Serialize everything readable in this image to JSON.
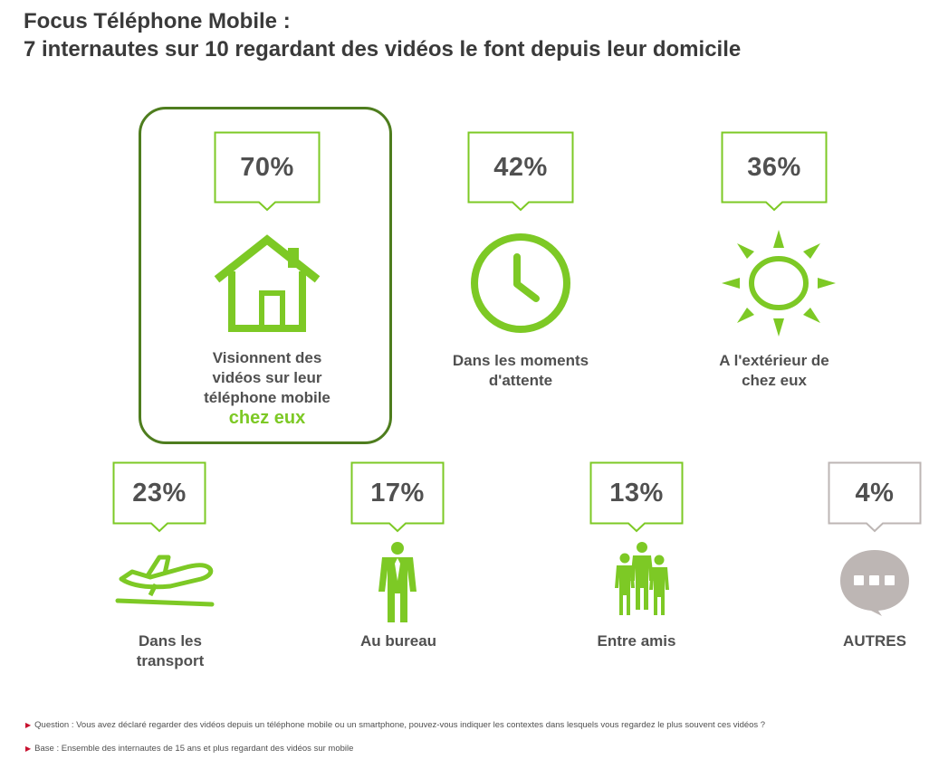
{
  "title": {
    "line1": "Focus Téléphone Mobile :",
    "line2": "7 internautes sur 10 regardant des vidéos le font depuis leur domicile"
  },
  "colors": {
    "green": "#7dc925",
    "dark_green": "#4e7d1e",
    "grey": "#bdb6b4",
    "text": "#505050"
  },
  "items": [
    {
      "percent": "70%",
      "icon": "house-icon",
      "label_lines": [
        "Visionnent des",
        "vidéos sur leur",
        "téléphone mobile"
      ],
      "accent": "chez eux"
    },
    {
      "percent": "42%",
      "icon": "clock-icon",
      "label_lines": [
        "Dans les moments",
        "d'attente"
      ]
    },
    {
      "percent": "36%",
      "icon": "sun-icon",
      "label_lines": [
        "A l'extérieur de",
        "chez eux"
      ]
    },
    {
      "percent": "23%",
      "icon": "airplane-icon",
      "label_lines": [
        "Dans les",
        "transport"
      ]
    },
    {
      "percent": "17%",
      "icon": "businessman-icon",
      "label_lines": [
        "Au bureau"
      ]
    },
    {
      "percent": "13%",
      "icon": "group-icon",
      "label_lines": [
        "Entre amis"
      ]
    },
    {
      "percent": "4%",
      "icon": "ellipsis-bubble-icon",
      "label_lines": [
        "AUTRES"
      ]
    }
  ],
  "footer": {
    "question": "Question : Vous avez déclaré regarder des vidéos depuis un téléphone mobile ou un smartphone, pouvez-vous indiquer les contextes dans lesquels vous regardez le plus souvent ces vidéos ?",
    "base": "Base : Ensemble des internautes de 15 ans et plus regardant des vidéos sur mobile"
  }
}
